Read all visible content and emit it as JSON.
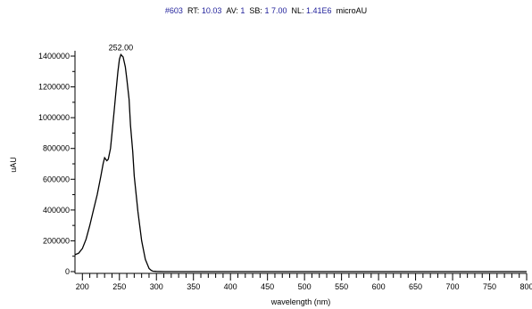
{
  "header": {
    "scan_prefix": "#",
    "scan": "603",
    "rt_label": "RT:",
    "rt": "10.03",
    "av_label": "AV:",
    "av": "1",
    "sb_label": "SB:",
    "sb": "1 7.00",
    "nl_label": "NL:",
    "nl": "1.41E6",
    "units": "microAU"
  },
  "colors": {
    "header_value": "#1f1f9a",
    "trace": "#000000"
  },
  "chart_data": {
    "type": "line",
    "xlabel": "wavelength (nm)",
    "ylabel": "uAU",
    "xlim": [
      190,
      800
    ],
    "ylim": [
      0,
      1400000
    ],
    "x_ticks": [
      200,
      250,
      300,
      350,
      400,
      450,
      500,
      550,
      600,
      650,
      700,
      750,
      800
    ],
    "x_tick_labels": [
      "200",
      "250",
      "300",
      "350",
      "400",
      "450",
      "500",
      "550",
      "600",
      "650",
      "700",
      "750",
      "800"
    ],
    "y_ticks": [
      0,
      200000,
      400000,
      600000,
      800000,
      1000000,
      1200000,
      1400000
    ],
    "y_tick_labels": [
      "0",
      "200000",
      "400000",
      "600000",
      "800000",
      "1000000",
      "1200000",
      "1400000"
    ],
    "annotations": [
      {
        "text": "252.00",
        "x": 252,
        "y": 1410000
      }
    ],
    "series": [
      {
        "x": [
          190,
          195,
          200,
          205,
          210,
          215,
          220,
          225,
          228,
          230,
          233,
          235,
          238,
          240,
          243,
          245,
          248,
          250,
          252,
          255,
          258,
          260,
          263,
          265,
          268,
          270,
          275,
          280,
          285,
          290,
          293,
          295,
          300,
          310,
          350,
          400,
          500,
          600,
          700,
          800
        ],
        "y": [
          110000,
          120000,
          150000,
          210000,
          300000,
          400000,
          500000,
          620000,
          700000,
          740000,
          720000,
          730000,
          800000,
          900000,
          1050000,
          1150000,
          1300000,
          1380000,
          1410000,
          1395000,
          1330000,
          1250000,
          1120000,
          950000,
          780000,
          620000,
          390000,
          200000,
          80000,
          20000,
          8000,
          3000,
          1000,
          0,
          0,
          0,
          0,
          0,
          0,
          0
        ]
      }
    ]
  }
}
